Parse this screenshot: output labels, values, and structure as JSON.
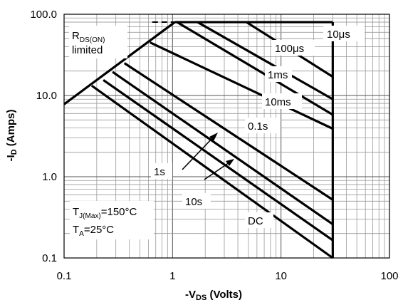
{
  "chart_data": {
    "type": "line",
    "xscale": "log",
    "yscale": "log",
    "xlim": [
      0.1,
      100
    ],
    "ylim": [
      0.1,
      100
    ],
    "grid": true,
    "xlabel": {
      "main": "-V",
      "sub": "DS",
      "rest": " (Volts)"
    },
    "ylabel": {
      "main": "-I",
      "sub": "D",
      "rest": " (Amps)"
    },
    "x_ticks": [
      {
        "value": 0.1,
        "label": "0.1"
      },
      {
        "value": 1,
        "label": "1"
      },
      {
        "value": 10,
        "label": "10"
      },
      {
        "value": 100,
        "label": "100"
      }
    ],
    "y_ticks": [
      {
        "value": 0.1,
        "label": "0.1"
      },
      {
        "value": 1,
        "label": "1.0"
      },
      {
        "value": 10,
        "label": "10.0"
      },
      {
        "value": 100,
        "label": "100.0"
      }
    ],
    "rdson_limit": {
      "x": [
        0.1,
        1.05
      ],
      "y": [
        7.8,
        80
      ]
    },
    "current_limit": {
      "x": [
        1.05,
        30
      ],
      "y": 80
    },
    "dashed_limit": {
      "x": [
        0.65,
        1.05
      ],
      "y": 80
    },
    "vds_max": 30,
    "series": [
      {
        "name": "10μs",
        "x": [
          4.8,
          30
        ],
        "y": [
          80,
          17
        ]
      },
      {
        "name": "100μs",
        "x": [
          1.7,
          30
        ],
        "y": [
          80,
          9
        ]
      },
      {
        "name": "1ms",
        "x": [
          1.1,
          30
        ],
        "y": [
          80,
          5.8
        ]
      },
      {
        "name": "10ms",
        "x": [
          0.62,
          30
        ],
        "y": [
          45,
          3.9
        ]
      },
      {
        "name": "0.1s",
        "x": [
          0.36,
          30
        ],
        "y": [
          25,
          0.52
        ]
      },
      {
        "name": "1s",
        "x": [
          0.28,
          30
        ],
        "y": [
          19.5,
          0.26
        ]
      },
      {
        "name": "10s",
        "x": [
          0.23,
          30
        ],
        "y": [
          15.5,
          0.165
        ]
      },
      {
        "name": "DC",
        "x": [
          0.18,
          30
        ],
        "y": [
          13.2,
          0.1
        ]
      }
    ],
    "labels": {
      "rdson_main": "R",
      "rdson_sub": "DS(ON)",
      "rdson_line2": "limited",
      "tj_main": "T",
      "tj_sub": "J(Max)",
      "tj_rest": "=150°C",
      "ta_main": "T",
      "ta_sub": "A",
      "ta_rest": "=25°C",
      "l10us": "10μs",
      "l100us": "100μs",
      "l1ms": "1ms",
      "l10ms": "10ms",
      "l01s": "0.1s",
      "l1s": "1s",
      "l10s": "10s",
      "lDC": "DC"
    }
  }
}
